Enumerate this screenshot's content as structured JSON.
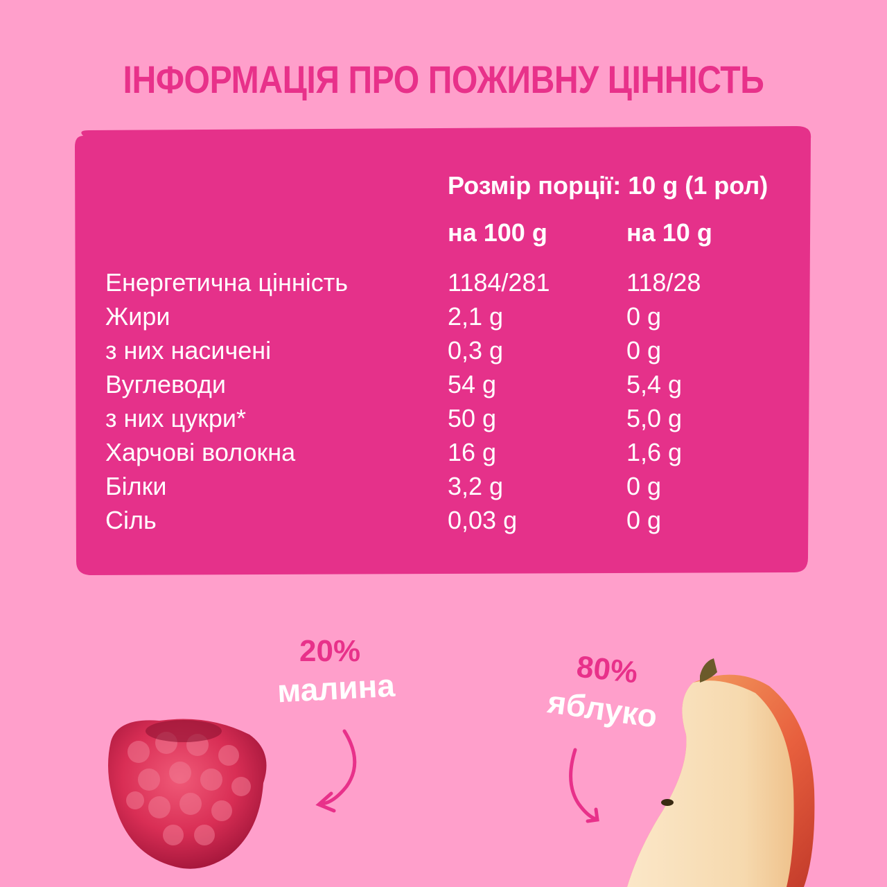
{
  "title": "ІНФОРМАЦІЯ ПРО ПОЖИВНУ ЦІННІСТЬ",
  "colors": {
    "background": "#FF9FCB",
    "card": "#E5318A",
    "accent": "#E8318A",
    "text_on_card": "#FFFFFF"
  },
  "table": {
    "serving": "Розмір порції: 10 g (1 рол)",
    "col1_header": "на 100 g",
    "col2_header": "на 10 g",
    "rows": [
      {
        "label": "Енергетична цінність",
        "per100": "1184/281",
        "per10": "118/28"
      },
      {
        "label": "Жири",
        "per100": "2,1 g",
        "per10": "0 g"
      },
      {
        "label": "з них насичені",
        "per100": "0,3 g",
        "per10": "0 g"
      },
      {
        "label": "Вуглеводи",
        "per100": "54 g",
        "per10": "5,4 g"
      },
      {
        "label": "з них цукри*",
        "per100": "50 g",
        "per10": "5,0 g"
      },
      {
        "label": "Харчові волокна",
        "per100": "16 g",
        "per10": "1,6 g"
      },
      {
        "label": "Білки",
        "per100": "3,2 g",
        "per10": "0 g"
      },
      {
        "label": "Сіль",
        "per100": "0,03 g",
        "per10": "0 g"
      }
    ]
  },
  "ingredients": [
    {
      "percent": "20%",
      "name": "малина",
      "icon": "raspberry-icon"
    },
    {
      "percent": "80%",
      "name": "яблуко",
      "icon": "apple-slice-icon"
    }
  ]
}
